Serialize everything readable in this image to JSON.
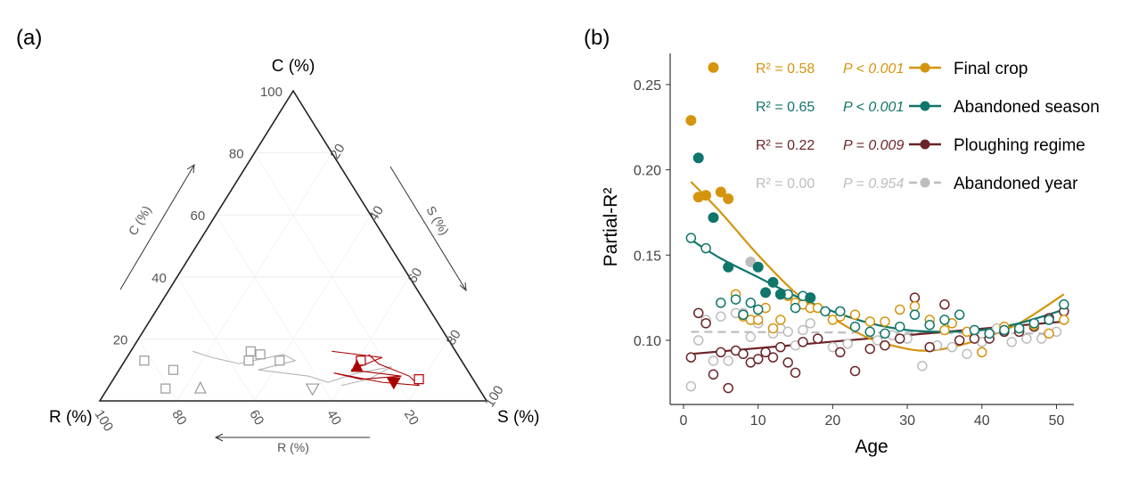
{
  "chart_data": [
    {
      "type": "ternary",
      "panel_label": "(a)",
      "axes": {
        "C": {
          "corner_label": "C (%)",
          "arrow_label": "C (%)",
          "ticks": [
            20,
            40,
            60,
            80,
            100
          ]
        },
        "S": {
          "corner_label": "S (%)",
          "arrow_label": "S (%)",
          "ticks": [
            20,
            40,
            60,
            80,
            100
          ]
        },
        "R": {
          "corner_label": "R (%)",
          "arrow_label": "R (%)",
          "ticks": [
            20,
            40,
            60,
            80,
            100
          ]
        }
      },
      "series": [
        {
          "name": "grey trajectories",
          "color": "#b5b5b5",
          "points_CSR": [
            [
              16,
              16,
              68
            ],
            [
              14,
              22,
              64
            ],
            [
              12,
              30,
              58
            ],
            [
              15,
              40,
              45
            ],
            [
              13,
              44,
              43
            ],
            [
              10,
              36,
              54
            ],
            [
              8,
              50,
              42
            ],
            [
              6,
              56,
              38
            ],
            [
              9,
              62,
              29
            ],
            [
              11,
              70,
              19
            ],
            [
              7,
              66,
              27
            ],
            [
              5,
              60,
              35
            ]
          ],
          "markers": [
            {
              "shape": "square",
              "CSR": [
                13,
                5,
                82
              ]
            },
            {
              "shape": "square",
              "CSR": [
                10,
                14,
                76
              ]
            },
            {
              "shape": "square",
              "CSR": [
                4,
                15,
                81
              ]
            },
            {
              "shape": "square",
              "CSR": [
                16,
                31,
                53
              ]
            },
            {
              "shape": "square",
              "CSR": [
                15,
                34,
                51
              ]
            },
            {
              "shape": "square",
              "CSR": [
                13,
                40,
                47
              ]
            },
            {
              "shape": "square",
              "CSR": [
                13,
                32,
                55
              ]
            },
            {
              "shape": "triangle-up",
              "CSR": [
                4,
                24,
                72
              ]
            },
            {
              "shape": "triangle-down",
              "CSR": [
                4,
                53,
                43
              ]
            }
          ]
        },
        {
          "name": "red trajectory",
          "color": "#aa0000",
          "points_CSR": [
            [
              16,
              52,
              32
            ],
            [
              14,
              66,
              20
            ],
            [
              10,
              60,
              30
            ],
            [
              8,
              74,
              18
            ],
            [
              7,
              64,
              29
            ],
            [
              9,
              56,
              35
            ],
            [
              6,
              70,
              24
            ],
            [
              5,
              80,
              15
            ],
            [
              8,
              76,
              16
            ],
            [
              12,
              66,
              22
            ],
            [
              15,
              62,
              23
            ]
          ],
          "markers": [
            {
              "shape": "square",
              "CSR": [
                13,
                61,
                26
              ]
            },
            {
              "shape": "square",
              "CSR": [
                7,
                79,
                14
              ]
            },
            {
              "shape": "triangle-up",
              "CSR": [
                11,
                61,
                28
              ]
            },
            {
              "shape": "triangle-down",
              "CSR": [
                6,
                73,
                21
              ]
            }
          ]
        }
      ]
    },
    {
      "type": "scatter",
      "panel_label": "(b)",
      "xlabel": "Age",
      "ylabel": "Partial-R²",
      "xlim": [
        -2,
        53
      ],
      "ylim": [
        0.065,
        0.268
      ],
      "xticks": [
        0,
        10,
        20,
        30,
        40,
        50
      ],
      "yticks": [
        0.1,
        0.15,
        0.2,
        0.25
      ],
      "ytick_labels": [
        "0.10",
        "0.15",
        "0.20",
        "0.25"
      ],
      "legend_position": "top-right",
      "series": [
        {
          "name": "Final crop",
          "color": "#d4950d",
          "stat": {
            "r2": "R² = 0.58",
            "p": "P < 0.001"
          },
          "filled": [
            [
              1,
              0.229
            ],
            [
              2,
              0.184
            ],
            [
              3,
              0.185
            ],
            [
              4,
              0.26
            ],
            [
              5,
              0.187
            ],
            [
              6,
              0.183
            ]
          ],
          "open": [
            [
              7,
              0.127
            ],
            [
              8,
              0.114
            ],
            [
              9,
              0.112
            ],
            [
              10,
              0.112
            ],
            [
              11,
              0.119
            ],
            [
              12,
              0.107
            ],
            [
              13,
              0.112
            ],
            [
              14,
              0.126
            ],
            [
              15,
              0.122
            ],
            [
              16,
              0.121
            ],
            [
              17,
              0.119
            ],
            [
              18,
              0.119
            ],
            [
              20,
              0.112
            ],
            [
              21,
              0.114
            ],
            [
              23,
              0.115
            ],
            [
              25,
              0.111
            ],
            [
              27,
              0.111
            ],
            [
              29,
              0.118
            ],
            [
              31,
              0.12
            ],
            [
              33,
              0.112
            ],
            [
              35,
              0.106
            ],
            [
              36,
              0.11
            ],
            [
              38,
              0.105
            ],
            [
              40,
              0.093
            ],
            [
              41,
              0.104
            ],
            [
              43,
              0.108
            ],
            [
              45,
              0.107
            ],
            [
              47,
              0.109
            ],
            [
              49,
              0.104
            ],
            [
              51,
              0.112
            ]
          ],
          "fit": {
            "kind": "polynomial",
            "x": [
              1,
              5,
              10,
              15,
              20,
              25,
              30,
              33,
              36,
              40,
              45,
              51
            ],
            "y": [
              0.193,
              0.175,
              0.15,
              0.128,
              0.113,
              0.101,
              0.095,
              0.094,
              0.096,
              0.101,
              0.11,
              0.127
            ]
          }
        },
        {
          "name": "Abandoned season",
          "color": "#10756a",
          "stat": {
            "r2": "R² = 0.65",
            "p": "P < 0.001"
          },
          "filled": [
            [
              2,
              0.207
            ],
            [
              4,
              0.172
            ],
            [
              6,
              0.143
            ],
            [
              10,
              0.143
            ],
            [
              11,
              0.128
            ],
            [
              12,
              0.134
            ],
            [
              13,
              0.127
            ],
            [
              17,
              0.125
            ]
          ],
          "open": [
            [
              1,
              0.16
            ],
            [
              3,
              0.154
            ],
            [
              5,
              0.122
            ],
            [
              7,
              0.124
            ],
            [
              8,
              0.115
            ],
            [
              9,
              0.122
            ],
            [
              10,
              0.118
            ],
            [
              14,
              0.127
            ],
            [
              15,
              0.119
            ],
            [
              16,
              0.126
            ],
            [
              19,
              0.117
            ],
            [
              21,
              0.117
            ],
            [
              23,
              0.108
            ],
            [
              25,
              0.105
            ],
            [
              27,
              0.104
            ],
            [
              29,
              0.108
            ],
            [
              31,
              0.115
            ],
            [
              33,
              0.109
            ],
            [
              35,
              0.112
            ],
            [
              37,
              0.115
            ],
            [
              39,
              0.106
            ],
            [
              41,
              0.104
            ],
            [
              43,
              0.106
            ],
            [
              45,
              0.107
            ],
            [
              47,
              0.11
            ],
            [
              49,
              0.112
            ],
            [
              51,
              0.121
            ]
          ],
          "fit": {
            "kind": "polynomial",
            "x": [
              1,
              5,
              10,
              15,
              20,
              25,
              30,
              35,
              40,
              45,
              51
            ],
            "y": [
              0.159,
              0.148,
              0.137,
              0.126,
              0.117,
              0.11,
              0.106,
              0.105,
              0.106,
              0.11,
              0.118
            ]
          }
        },
        {
          "name": "Ploughing regime",
          "color": "#6b2427",
          "stat": {
            "r2": "R² = 0.22",
            "p": "P = 0.009"
          },
          "filled": [],
          "open": [
            [
              1,
              0.09
            ],
            [
              2,
              0.116
            ],
            [
              3,
              0.11
            ],
            [
              4,
              0.08
            ],
            [
              5,
              0.093
            ],
            [
              6,
              0.072
            ],
            [
              7,
              0.094
            ],
            [
              8,
              0.092
            ],
            [
              9,
              0.087
            ],
            [
              10,
              0.089
            ],
            [
              11,
              0.093
            ],
            [
              12,
              0.09
            ],
            [
              13,
              0.096
            ],
            [
              14,
              0.087
            ],
            [
              15,
              0.081
            ],
            [
              16,
              0.099
            ],
            [
              18,
              0.101
            ],
            [
              21,
              0.093
            ],
            [
              23,
              0.082
            ],
            [
              25,
              0.095
            ],
            [
              27,
              0.097
            ],
            [
              29,
              0.101
            ],
            [
              31,
              0.125
            ],
            [
              33,
              0.096
            ],
            [
              35,
              0.121
            ],
            [
              37,
              0.1
            ],
            [
              39,
              0.101
            ],
            [
              41,
              0.101
            ],
            [
              43,
              0.105
            ],
            [
              45,
              0.105
            ],
            [
              47,
              0.108
            ],
            [
              49,
              0.113
            ],
            [
              51,
              0.117
            ]
          ],
          "fit": {
            "kind": "linear",
            "x": [
              1,
              51
            ],
            "y": [
              0.092,
              0.111
            ]
          }
        },
        {
          "name": "Abandoned year",
          "color": "#bdbdbd",
          "stat": {
            "r2": "R² = 0.00",
            "p": "P = 0.954"
          },
          "filled": [
            [
              9,
              0.146
            ]
          ],
          "open": [
            [
              1,
              0.073
            ],
            [
              2,
              0.1
            ],
            [
              3,
              0.112
            ],
            [
              4,
              0.088
            ],
            [
              5,
              0.114
            ],
            [
              6,
              0.088
            ],
            [
              7,
              0.116
            ],
            [
              8,
              0.116
            ],
            [
              9,
              0.102
            ],
            [
              10,
              0.11
            ],
            [
              12,
              0.104
            ],
            [
              13,
              0.107
            ],
            [
              14,
              0.105
            ],
            [
              15,
              0.097
            ],
            [
              16,
              0.106
            ],
            [
              17,
              0.11
            ],
            [
              20,
              0.096
            ],
            [
              22,
              0.098
            ],
            [
              26,
              0.1
            ],
            [
              28,
              0.103
            ],
            [
              30,
              0.101
            ],
            [
              32,
              0.085
            ],
            [
              34,
              0.097
            ],
            [
              36,
              0.096
            ],
            [
              38,
              0.092
            ],
            [
              40,
              0.099
            ],
            [
              42,
              0.107
            ],
            [
              44,
              0.099
            ],
            [
              46,
              0.101
            ],
            [
              48,
              0.101
            ],
            [
              50,
              0.105
            ]
          ],
          "fit": {
            "kind": "linear",
            "dashed": true,
            "x": [
              1,
              51
            ],
            "y": [
              0.105,
              0.104
            ]
          }
        }
      ]
    }
  ]
}
